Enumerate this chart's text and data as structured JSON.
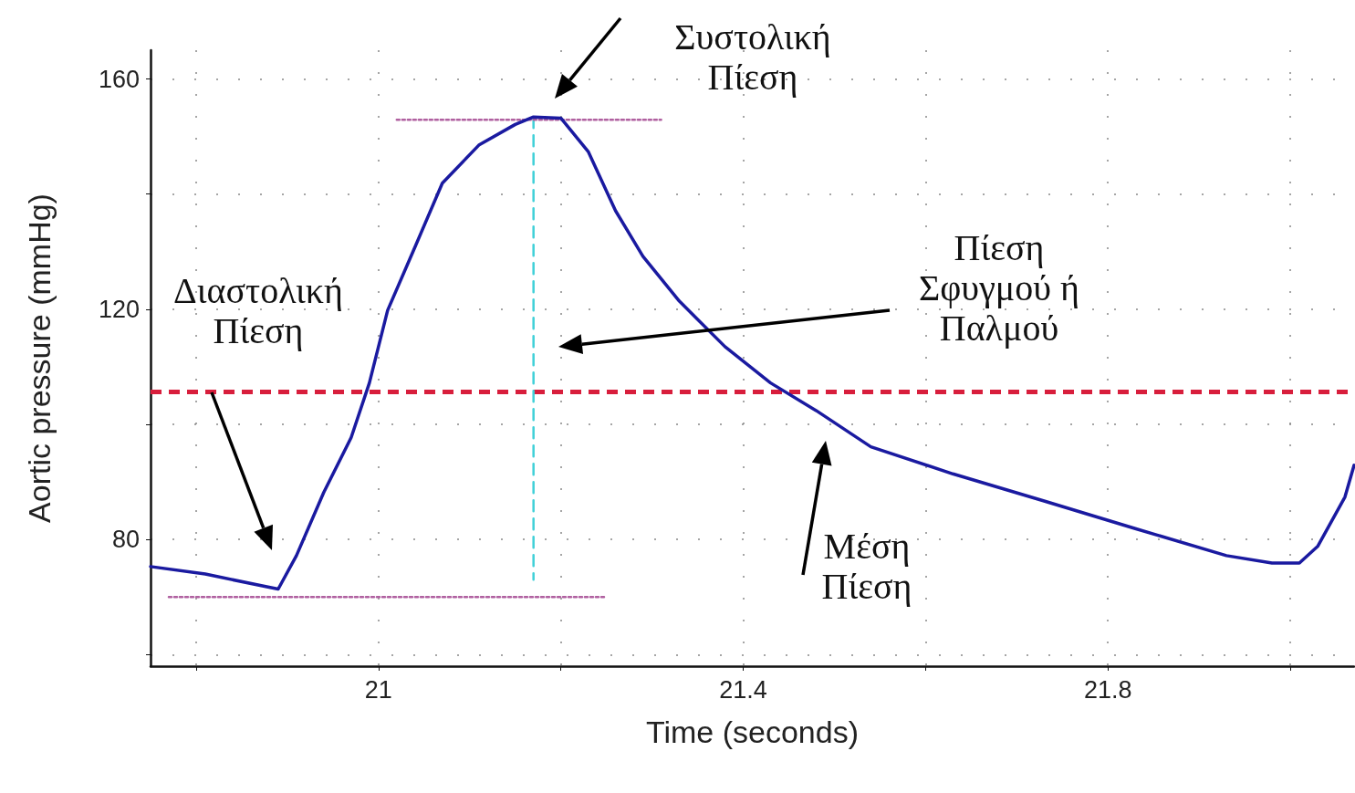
{
  "chart_data": {
    "type": "line",
    "xlabel": "Time (seconds)",
    "ylabel": "Aortic pressure (mmHg)",
    "xlim": [
      20.75,
      22.07
    ],
    "ylim": [
      58,
      165
    ],
    "xticks": [
      {
        "value": 20.8,
        "label": null
      },
      21,
      {
        "value": 21.2,
        "label": null
      },
      21.4,
      {
        "value": 21.6,
        "label": null
      },
      21.8,
      {
        "value": 22.0,
        "label": null
      }
    ],
    "yticks": [
      {
        "value": 60,
        "label": null
      },
      80,
      {
        "value": 100,
        "label": null
      },
      120,
      {
        "value": 140,
        "label": null
      },
      160
    ],
    "grid": true,
    "marker": "none",
    "series": [
      {
        "color": "#1a1aa0",
        "line_style": "solid",
        "x": [
          20.75,
          20.81,
          20.88,
          20.89,
          20.91,
          20.94,
          20.97,
          20.99,
          21.01,
          21.04,
          21.07,
          21.11,
          21.15,
          21.17,
          21.2,
          21.23,
          21.26,
          21.29,
          21.33,
          21.38,
          21.43,
          21.48,
          21.54,
          21.63,
          21.73,
          21.83,
          21.93,
          21.98,
          22.01,
          22.03,
          22.06,
          22.07
        ],
        "values": [
          75.3,
          74.0,
          71.7,
          71.4,
          77.2,
          88.2,
          97.7,
          107.2,
          119.8,
          130.8,
          141.9,
          148.5,
          152.1,
          153.4,
          153.2,
          147.4,
          137.1,
          129.2,
          121.4,
          113.5,
          107.2,
          102.4,
          96.1,
          91.4,
          86.7,
          81.9,
          77.2,
          75.9,
          75.9,
          78.8,
          87.4,
          92.9
        ]
      },
      {
        "color": "#40d0d8",
        "line_style": "dashed",
        "x": [
          21.17,
          21.17
        ],
        "values": [
          153.4,
          73
        ]
      },
      {
        "color": "#b060a0",
        "line_style": "dotted",
        "x": [
          21.02,
          21.31
        ],
        "values": [
          152.9,
          152.9
        ]
      },
      {
        "color": "#b060a0",
        "line_style": "dotted",
        "x": [
          20.77,
          21.25
        ],
        "values": [
          70.0,
          70.0
        ]
      }
    ],
    "ref_lines": [
      {
        "axis": "y",
        "value": 105.6,
        "label": null,
        "color": "#d81e3c",
        "line_style": "dashed"
      }
    ],
    "annotations": [
      "Συστολική\nΠίεση",
      "Πίεση\nΣφυγμού ή\nΠαλμού",
      "Διαστολική\nΠίεση",
      "Μέση\nΠίεση"
    ]
  }
}
